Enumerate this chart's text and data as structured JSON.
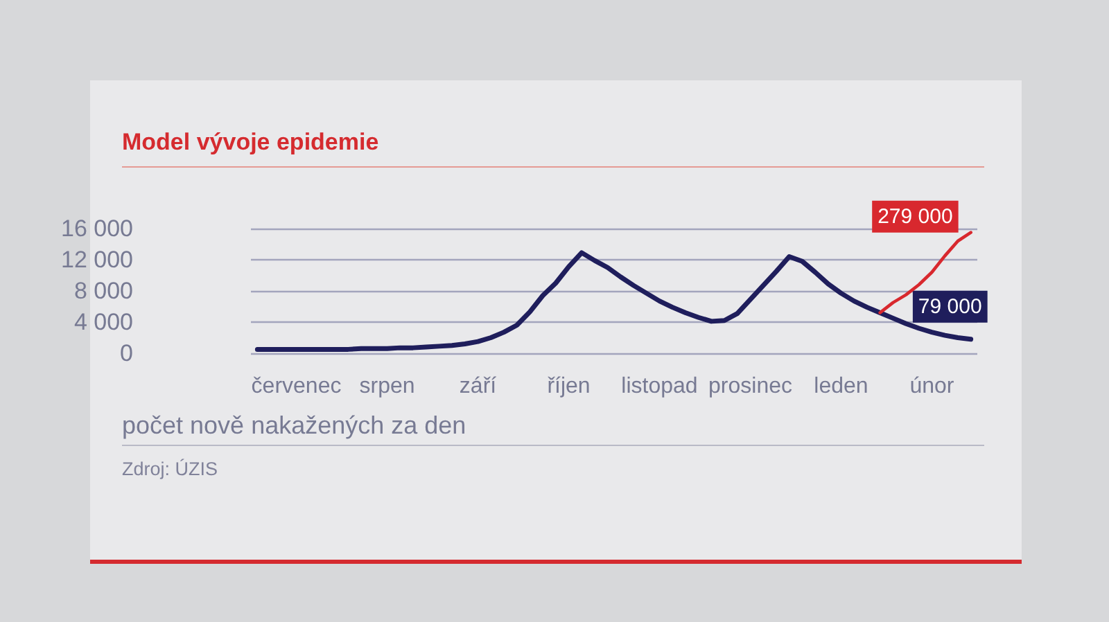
{
  "chart_data": {
    "type": "line",
    "title": "Model vývoje epidemie",
    "ylabel": "počet nově nakažených za den",
    "annotations": [
      "Zdroj: ÚZIS"
    ],
    "categories": [
      null,
      null,
      null,
      "červenec",
      null,
      null,
      null,
      null,
      null,
      null,
      "srpen",
      null,
      null,
      null,
      null,
      null,
      null,
      "září",
      null,
      null,
      null,
      null,
      null,
      null,
      "říjen",
      null,
      null,
      null,
      null,
      null,
      null,
      "listopad",
      null,
      null,
      null,
      null,
      null,
      null,
      "prosinec",
      null,
      null,
      null,
      null,
      null,
      null,
      "leden",
      null,
      null,
      null,
      null,
      null,
      null,
      "únor",
      null,
      null,
      null
    ],
    "series": [
      {
        "name": "79 000",
        "color": "#1f1e5c",
        "values": [
          500,
          500,
          500,
          500,
          500,
          500,
          500,
          500,
          600,
          600,
          600,
          700,
          700,
          800,
          900,
          1000,
          1200,
          1500,
          2000,
          2700,
          3600,
          5300,
          7400,
          9000,
          11100,
          12900,
          11900,
          11000,
          9800,
          8700,
          7700,
          6700,
          5900,
          5200,
          4600,
          4100,
          4200,
          5100,
          6900,
          8700,
          10500,
          12400,
          11800,
          10400,
          8900,
          7700,
          6700,
          5900,
          5200,
          4500,
          3800,
          3200,
          2700,
          2300,
          2000,
          1800
        ]
      },
      {
        "name": "279 000",
        "color": "#d8282e",
        "values": [
          null,
          null,
          null,
          null,
          null,
          null,
          null,
          null,
          null,
          null,
          null,
          null,
          null,
          null,
          null,
          null,
          null,
          null,
          null,
          null,
          null,
          null,
          null,
          null,
          null,
          null,
          null,
          null,
          null,
          null,
          null,
          null,
          null,
          null,
          null,
          null,
          null,
          null,
          null,
          null,
          null,
          null,
          null,
          null,
          null,
          null,
          null,
          null,
          5200,
          6500,
          7500,
          8800,
          10400,
          12500,
          14400,
          15500
        ]
      }
    ],
    "ylim": [
      0,
      16000
    ],
    "yticks": [
      0,
      {
        "value": 4000,
        "label": "4 000"
      },
      {
        "value": 8000,
        "label": "8 000"
      },
      {
        "value": 12000,
        "label": "12 000"
      },
      {
        "value": 16000,
        "label": "16 000"
      }
    ],
    "grid": "y",
    "legend": false,
    "marker": "none"
  }
}
